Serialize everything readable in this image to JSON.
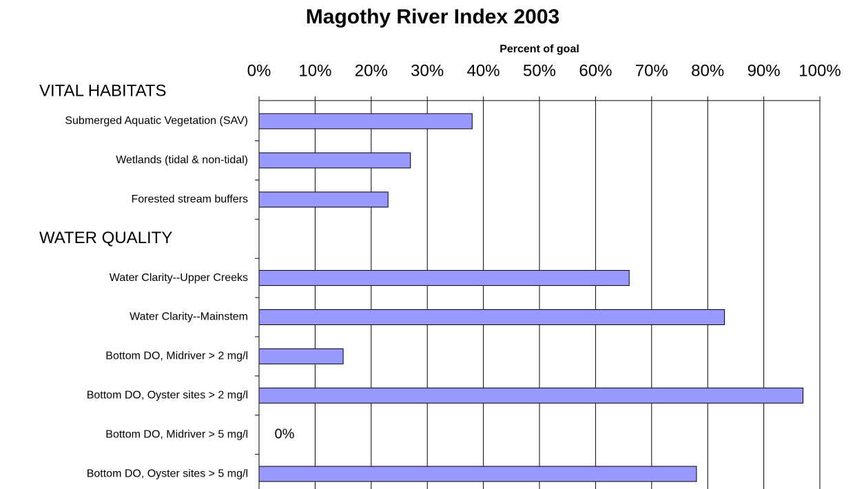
{
  "chart_data": {
    "type": "bar",
    "orientation": "horizontal",
    "title": "Magothy River Index 2003",
    "xlabel": "Percent of goal",
    "categories": [
      "VITAL HABITATS",
      "Submerged Aquatic Vegetation (SAV)",
      "Wetlands (tidal & non-tidal)",
      "Forested stream buffers",
      "WATER QUALITY",
      "Water Clarity--Upper Creeks",
      "Water Clarity--Mainstem",
      "Bottom DO, Midriver > 2 mg/l",
      "Bottom DO, Oyster sites > 2 mg/l",
      "Bottom DO, Midriver > 5 mg/l",
      "Bottom DO, Oyster sites > 5 mg/l"
    ],
    "values": [
      null,
      38,
      27,
      23,
      null,
      66,
      83,
      15,
      97,
      0,
      78
    ],
    "value_labels": [
      null,
      null,
      null,
      null,
      null,
      null,
      null,
      null,
      null,
      "0%",
      null
    ],
    "color": "#9999ff",
    "xlim": [
      0,
      100
    ],
    "xticks": [
      {
        "value": 0,
        "label": "0%"
      },
      {
        "value": 10,
        "label": "10%"
      },
      {
        "value": 20,
        "label": "20%"
      },
      {
        "value": 30,
        "label": "30%"
      },
      {
        "value": 40,
        "label": "40%"
      },
      {
        "value": 50,
        "label": "50%"
      },
      {
        "value": 60,
        "label": "60%"
      },
      {
        "value": 70,
        "label": "70%"
      },
      {
        "value": 80,
        "label": "80%"
      },
      {
        "value": 90,
        "label": "90%"
      },
      {
        "value": 100,
        "label": "100%"
      }
    ],
    "grid": true
  }
}
